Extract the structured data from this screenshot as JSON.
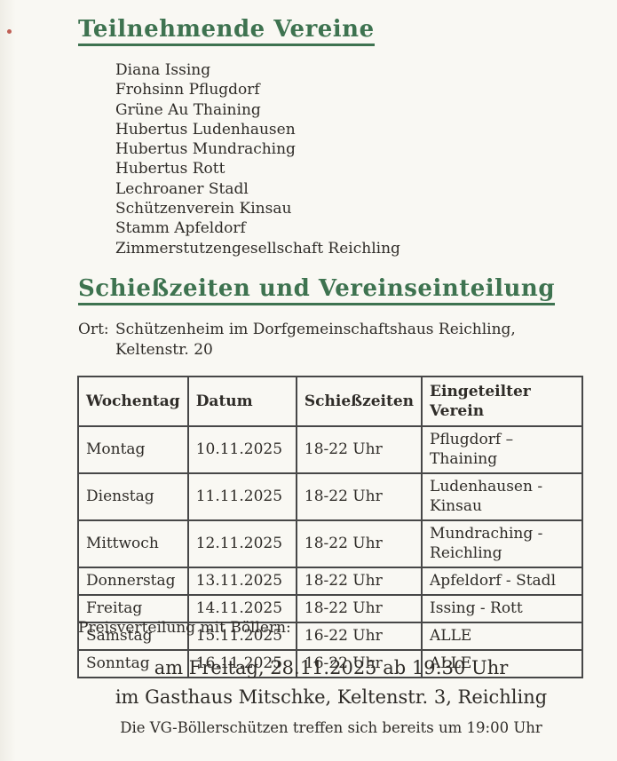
{
  "page": {
    "background_color": "#f9f8f3",
    "accent_green": "#3e7350",
    "text_color": "#2f2c28"
  },
  "participants": {
    "title": "Teilnehmende Vereine",
    "clubs": [
      "Diana Issing",
      "Frohsinn Pflugdorf",
      "Grüne Au Thaining",
      "Hubertus Ludenhausen",
      "Hubertus Mundraching",
      "Hubertus Rott",
      "Lechroaner Stadl",
      "Schützenverein Kinsau",
      "Stamm Apfeldorf",
      "Zimmerstutzengesellschaft Reichling"
    ]
  },
  "schedule": {
    "title": "Schießzeiten und Vereinseinteilung",
    "location_label": "Ort:",
    "location_line1": "Schützenheim im Dorfgemeinschaftshaus Reichling,",
    "location_line2": "Keltenstr. 20",
    "table": {
      "headers": [
        "Wochentag",
        "Datum",
        "Schießzeiten",
        "Eingeteilter Verein"
      ],
      "rows": [
        [
          "Montag",
          "10.11.2025",
          "18-22 Uhr",
          "Pflugdorf – Thaining"
        ],
        [
          "Dienstag",
          "11.11.2025",
          "18-22 Uhr",
          "Ludenhausen - Kinsau"
        ],
        [
          "Mittwoch",
          "12.11.2025",
          "18-22 Uhr",
          "Mundraching - Reichling"
        ],
        [
          "Donnerstag",
          "13.11.2025",
          "18-22 Uhr",
          "Apfeldorf - Stadl"
        ],
        [
          "Freitag",
          "14.11.2025",
          "18-22 Uhr",
          "Issing - Rott"
        ],
        [
          "Samstag",
          "15.11.2025",
          "16-22 Uhr",
          "ALLE"
        ],
        [
          "Sonntag",
          "16.11.2025",
          "16-22 Uhr",
          "ALLE"
        ]
      ]
    }
  },
  "prizes": {
    "intro": "Preisverteilung mit Böllern:",
    "event_line1": "am Freitag, 28.11.2025 ab 19:30 Uhr",
    "event_line2": "im Gasthaus Mitschke, Keltenstr. 3, Reichling",
    "note": "Die VG-Böllerschützen treffen sich bereits um 19:00 Uhr"
  }
}
